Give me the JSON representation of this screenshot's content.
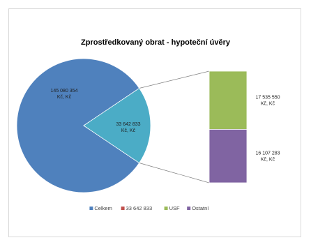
{
  "chart_data": {
    "type": "pie",
    "title": "Zprostředkovaný obrat - hypoteční úvěry",
    "subtype": "pie-of-bar",
    "slices": [
      {
        "name": "Celkem",
        "value": 145080354,
        "label_lines": [
          "145 080 354",
          "Kč, Kč"
        ],
        "color": "#4f81bd"
      },
      {
        "name": "33 642 833",
        "value": 33642833,
        "label_lines": [
          "33 642 833",
          "Kč, Kč"
        ],
        "color": "#4bacc6"
      }
    ],
    "breakdown_of": "33 642 833",
    "bar_segments": [
      {
        "name": "USF",
        "value": 17535550,
        "label_lines": [
          "17 535 550",
          "Kč, Kč"
        ],
        "color": "#9bbb59"
      },
      {
        "name": "Ostatní",
        "value": 16107283,
        "label_lines": [
          "16 107 283",
          "Kč, Kč"
        ],
        "color": "#8064a2"
      }
    ],
    "legend": {
      "position": "bottom",
      "items": [
        {
          "label": "Celkem",
          "color": "#4f81bd"
        },
        {
          "label": "33 642 833",
          "color": "#c0504d"
        },
        {
          "label": "USF",
          "color": "#9bbb59"
        },
        {
          "label": "Ostatní",
          "color": "#8064a2"
        }
      ]
    }
  }
}
